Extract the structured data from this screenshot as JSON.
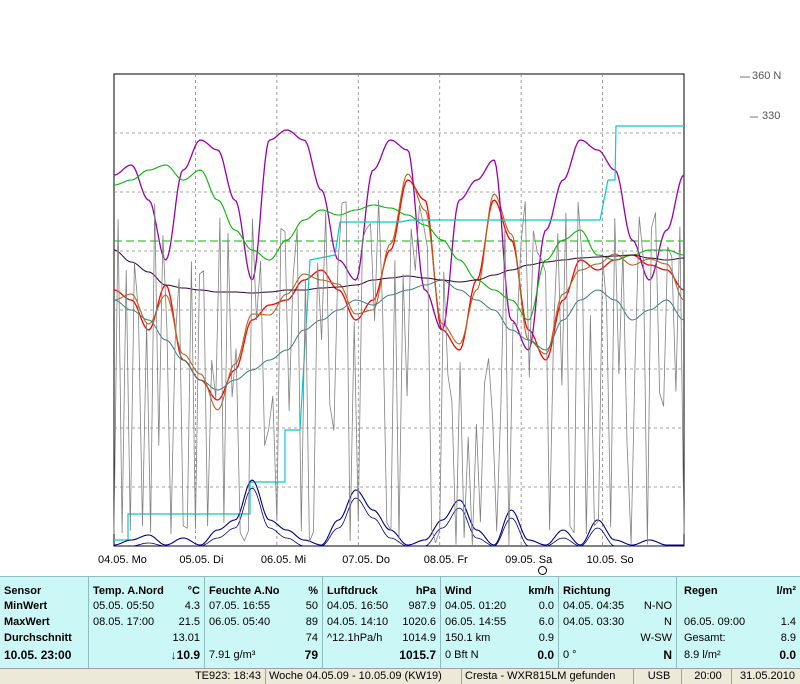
{
  "right_labels": {
    "r360": "360 N",
    "r330": "330"
  },
  "chart_data": {
    "type": "line",
    "x_tick_labels": [
      "04.05. Mo",
      "05.05. Di",
      "06.05. Mi",
      "07.05. Do",
      "08.05. Fr",
      "09.05. Sa",
      "10.05. So"
    ],
    "colors": {
      "temp": "#ff0000",
      "temp2": "#b5651d",
      "humidity": "#9900aa",
      "pressure": "#00bb00",
      "wind": "#000080",
      "direction": "#808080",
      "rain": "#00cccc",
      "dewpoint": "#3a7d7d",
      "avg": "#330033",
      "ref_line": "#00bb00"
    }
  },
  "panel": {
    "sensor": {
      "title": "Sensor",
      "min": "MinWert",
      "max": "MaxWert",
      "avg": "Durchschnitt",
      "current": "10.05. 23:00"
    },
    "temp": {
      "title": "Temp. A.Nord",
      "unit": "°C",
      "min_time": "05.05. 05:50",
      "min_val": "4.3",
      "max_time": "08.05. 17:00",
      "max_val": "21.5",
      "avg_val": "13.01",
      "current_val": "10.9",
      "trend": "↓"
    },
    "humidity": {
      "title": "Feuchte A.No",
      "unit": "%",
      "min_time": "07.05. 16:55",
      "min_val": "50",
      "max_time": "06.05. 05:40",
      "max_val": "89",
      "avg_val": "74",
      "extra": "7.91 g/m³",
      "current_val": "79"
    },
    "pressure": {
      "title": "Luftdruck",
      "unit": "hPa",
      "min_time": "04.05. 16:50",
      "min_val": "987.9",
      "max_time": "04.05. 14:10",
      "max_val": "1020.6",
      "trend_info": "^12.1hPa/h",
      "avg_val": "1014.9",
      "current_val": "1015.7"
    },
    "wind": {
      "title": "Wind",
      "unit": "km/h",
      "min_time": "04.05. 01:20",
      "min_val": "0.0",
      "max_time": "06.05. 14:55",
      "max_val": "6.0",
      "distance": "150.1 km",
      "avg_val": "0.9",
      "bft": "0 Bft N",
      "current_val": "0.0"
    },
    "direction": {
      "title": "Richtung",
      "min_time": "04.05. 04:35",
      "min_val": "N-NO",
      "max_time": "04.05. 03:30",
      "max_val": "N",
      "avg_val": "W-SW",
      "current_deg": "0 °",
      "current_val": "N"
    },
    "rain": {
      "title": "Regen",
      "unit": "l/m²",
      "max_time": "06.05. 09:00",
      "max_val": "1.4",
      "total_label": "Gesamt:",
      "total_val": "8.9",
      "current_extra": "8.9 l/m²",
      "current_val": "0.0"
    }
  },
  "statusbar": {
    "s1": "TE923: 18:43",
    "s2": "Woche 04.05.09 - 10.05.09 (KW19)",
    "s3": "Cresta - WXR815LM gefunden",
    "s4": "USB",
    "s5": "20:00",
    "s6": "31.05.2010"
  }
}
